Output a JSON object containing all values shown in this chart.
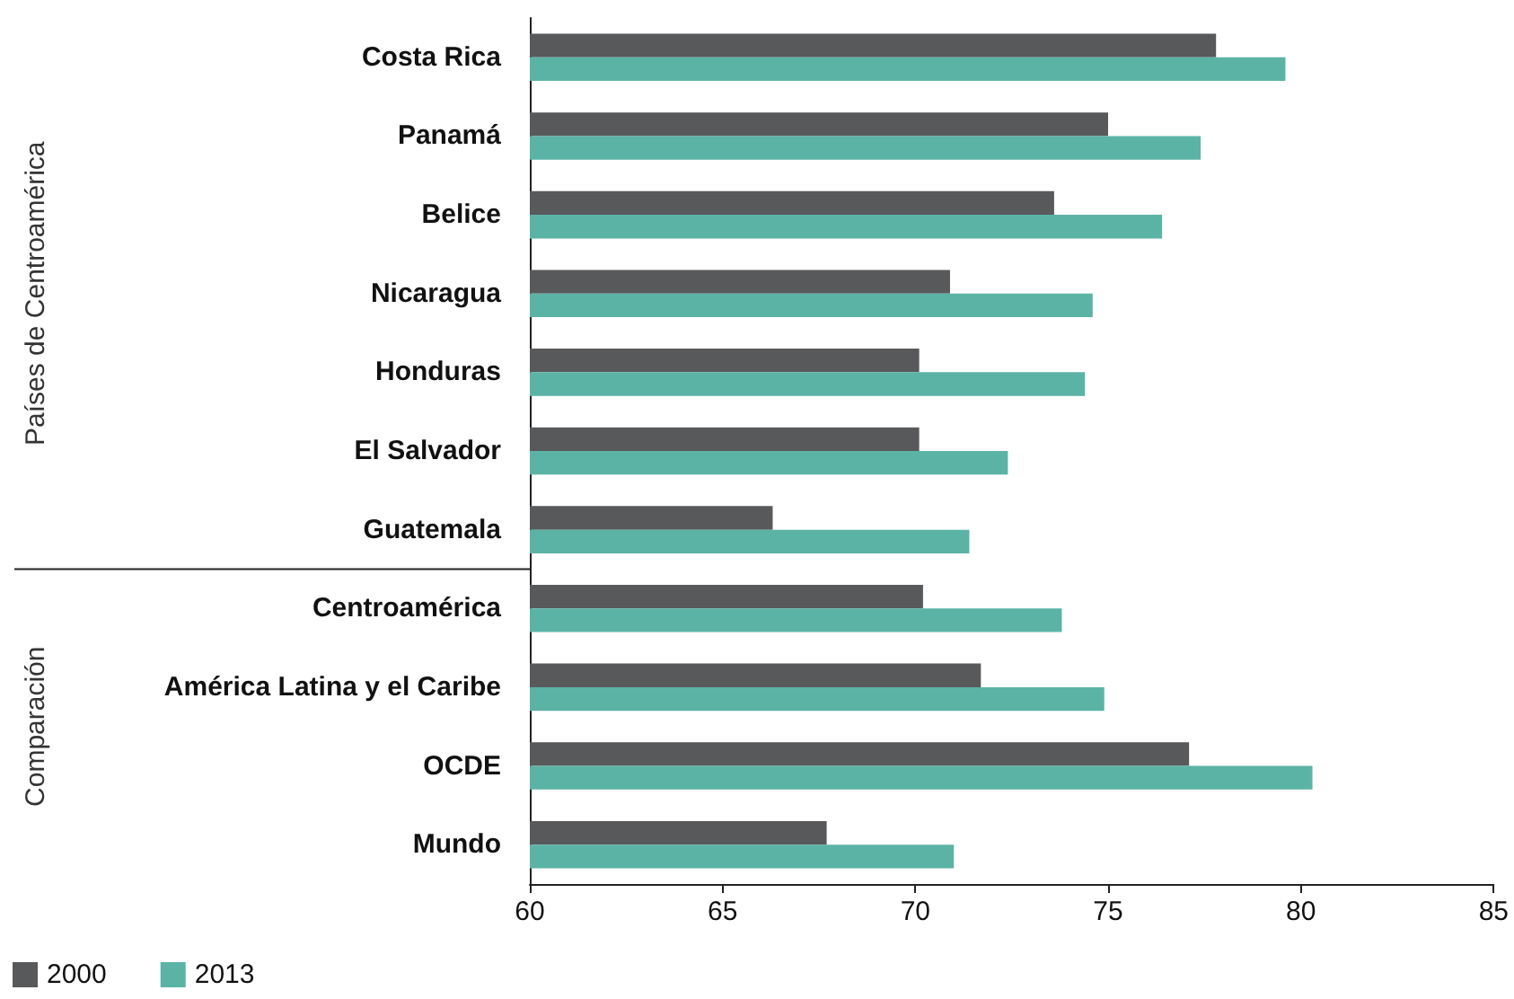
{
  "chart_data": {
    "type": "bar",
    "orientation": "horizontal",
    "categories": [
      "Costa Rica",
      "Panamá",
      "Belice",
      "Nicaragua",
      "Honduras",
      "El Salvador",
      "Guatemala",
      "Centroamérica",
      "América Latina y el Caribe",
      "OCDE",
      "Mundo"
    ],
    "series": [
      {
        "name": "2000",
        "color": "#58595b",
        "values": [
          77.8,
          75.0,
          73.6,
          70.9,
          70.1,
          70.1,
          66.3,
          70.2,
          71.7,
          77.1,
          67.7
        ]
      },
      {
        "name": "2013",
        "color": "#5bb3a6",
        "values": [
          79.6,
          77.4,
          76.4,
          74.6,
          74.4,
          72.4,
          71.4,
          73.8,
          74.9,
          80.3,
          71.0
        ]
      }
    ],
    "xlim": [
      60,
      85
    ],
    "xticks": [
      60,
      65,
      70,
      75,
      80,
      85
    ],
    "grid": false,
    "legend": "bottom left",
    "annotations": [
      "Países de Centroamérica",
      "Comparación"
    ]
  }
}
